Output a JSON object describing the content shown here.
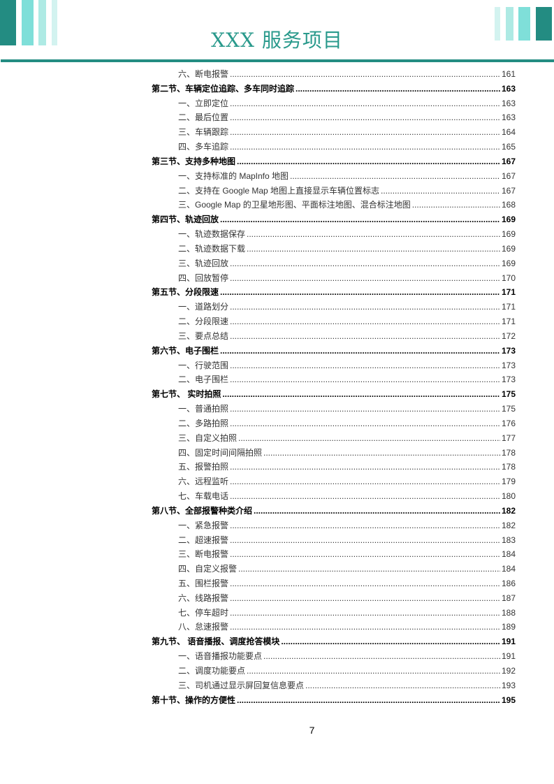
{
  "header": {
    "title": "XXX 服务项目",
    "colors": {
      "dark": "#238c82",
      "mid": "#7fdfd9",
      "light": "#aeeae4",
      "pale": "#d3f3f0"
    }
  },
  "toc": [
    {
      "level": 2,
      "text": "六、断电报警",
      "page": "161"
    },
    {
      "level": 1,
      "text": "第二节、车辆定位追踪、多车同时追踪",
      "page": "163"
    },
    {
      "level": 2,
      "text": "一、立即定位",
      "page": "163"
    },
    {
      "level": 2,
      "text": "二、最后位置",
      "page": "163"
    },
    {
      "level": 2,
      "text": "三、车辆跟踪",
      "page": "164"
    },
    {
      "level": 2,
      "text": "四、多车追踪",
      "page": "165"
    },
    {
      "level": 1,
      "text": "第三节、支持多种地图",
      "page": "167"
    },
    {
      "level": 2,
      "text": "一、支持标准的 MapInfo 地图",
      "page": "167"
    },
    {
      "level": 2,
      "text": "二、支持在 Google Map 地图上直接显示车辆位置标志",
      "page": "167"
    },
    {
      "level": 2,
      "text": "三、Google Map 的卫星地形图、平面标注地图、混合标注地图",
      "page": "168"
    },
    {
      "level": 1,
      "text": "第四节、轨迹回放",
      "page": "169"
    },
    {
      "level": 2,
      "text": "一、轨迹数据保存",
      "page": "169"
    },
    {
      "level": 2,
      "text": "二、轨迹数据下载",
      "page": "169"
    },
    {
      "level": 2,
      "text": "三、轨迹回放",
      "page": "169"
    },
    {
      "level": 2,
      "text": "四、回放暂停",
      "page": "170"
    },
    {
      "level": 1,
      "text": "第五节、分段限速",
      "page": "171"
    },
    {
      "level": 2,
      "text": "一、道路划分",
      "page": "171"
    },
    {
      "level": 2,
      "text": "二、分段限速",
      "page": "171"
    },
    {
      "level": 2,
      "text": "三、要点总结",
      "page": "172"
    },
    {
      "level": 1,
      "text": "第六节、电子围栏",
      "page": "173"
    },
    {
      "level": 2,
      "text": "一、行驶范围",
      "page": "173"
    },
    {
      "level": 2,
      "text": "二、电子围栏",
      "page": "173"
    },
    {
      "level": 1,
      "text": "第七节、  实时拍照",
      "page": "175"
    },
    {
      "level": 2,
      "text": "一、普通拍照",
      "page": "175"
    },
    {
      "level": 2,
      "text": "二、多路拍照",
      "page": "176"
    },
    {
      "level": 2,
      "text": "三、自定义拍照",
      "page": "177"
    },
    {
      "level": 2,
      "text": "四、固定时间间隔拍照",
      "page": "178"
    },
    {
      "level": 2,
      "text": "五、报警拍照",
      "page": "178"
    },
    {
      "level": 2,
      "text": "六、远程监听",
      "page": "179"
    },
    {
      "level": 2,
      "text": "七、车载电话",
      "page": "180"
    },
    {
      "level": 1,
      "text": "第八节、全部报警种类介绍",
      "page": "182"
    },
    {
      "level": 2,
      "text": "一、紧急报警",
      "page": "182"
    },
    {
      "level": 2,
      "text": "二、超速报警",
      "page": "183"
    },
    {
      "level": 2,
      "text": "三、断电报警",
      "page": "184"
    },
    {
      "level": 2,
      "text": "四、自定义报警",
      "page": "184"
    },
    {
      "level": 2,
      "text": "五、围栏报警",
      "page": "186"
    },
    {
      "level": 2,
      "text": "六、线路报警",
      "page": "187"
    },
    {
      "level": 2,
      "text": "七、停车超时",
      "page": "188"
    },
    {
      "level": 2,
      "text": "八、怠速报警",
      "page": "189"
    },
    {
      "level": 1,
      "text": "第九节、  语音播报、调度抢答模块",
      "page": "191"
    },
    {
      "level": 2,
      "text": "一、语音播报功能要点",
      "page": "191"
    },
    {
      "level": 2,
      "text": "二、调度功能要点",
      "page": "192"
    },
    {
      "level": 2,
      "text": "三、司机通过显示屏回复信息要点",
      "page": "193"
    },
    {
      "level": 1,
      "text": "第十节、操作的方便性",
      "page": "195"
    }
  ],
  "footer": {
    "page_number": "7"
  }
}
